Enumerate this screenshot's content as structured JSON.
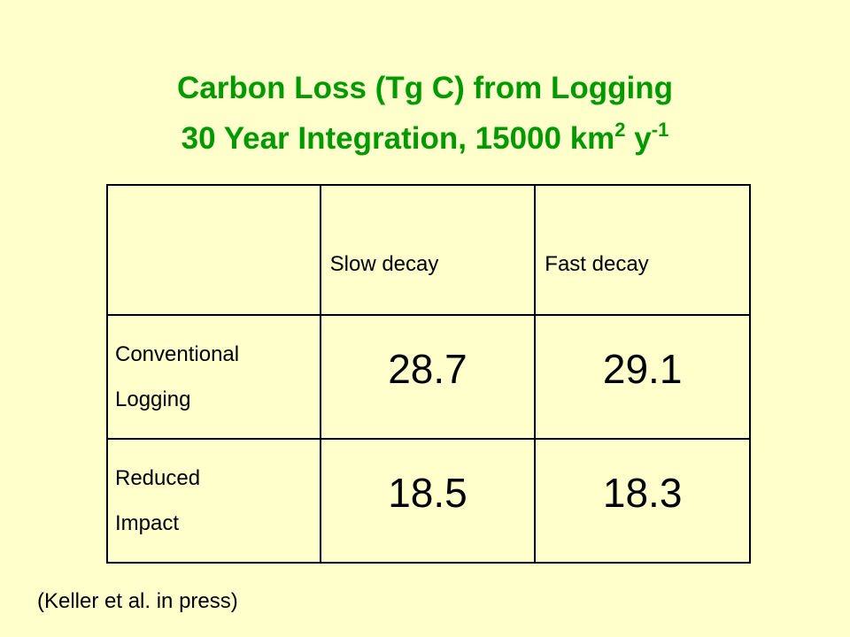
{
  "title": {
    "line1": "Carbon Loss (Tg C) from Logging",
    "line2": "30 Year Integration, 15000 km",
    "sup1": "2",
    "unit": "y",
    "sup2": "-1"
  },
  "table": {
    "headers": [
      "Slow decay",
      "Fast decay"
    ],
    "rows": [
      {
        "label": [
          "Conventional",
          "Logging"
        ],
        "values": [
          28.7,
          29.1
        ]
      },
      {
        "label": [
          "Reduced",
          "Impact"
        ],
        "values": [
          18.5,
          18.3
        ]
      }
    ]
  },
  "footer": "(Keller et al. in press)"
}
